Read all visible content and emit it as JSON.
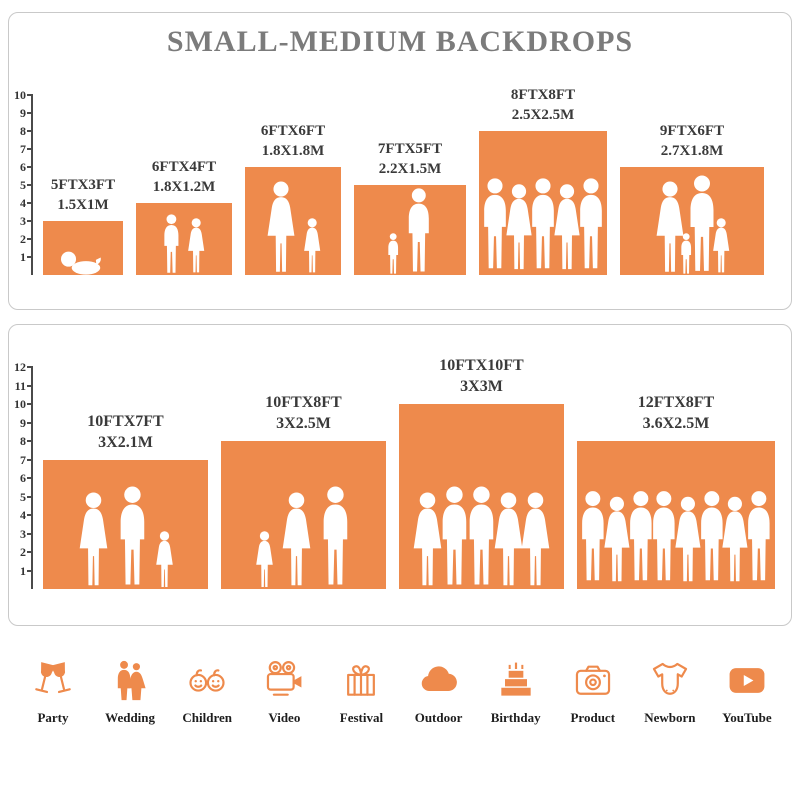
{
  "title": "SMALL-MEDIUM BACKDROPS",
  "colors": {
    "accent": "#EE8A4C",
    "title": "#7B7B7B",
    "text": "#3A3A3A",
    "ruler": "#444444",
    "border": "#C9C9C9"
  },
  "panels": [
    {
      "name": "small-medium-sizes",
      "ruler": [
        "10",
        "9",
        "8",
        "7",
        "6",
        "5",
        "4",
        "3",
        "2",
        "1"
      ],
      "backdrops": [
        {
          "ft": "5FTX3FT",
          "m": "1.5X1M",
          "w": 5,
          "h": 3,
          "people": [
            "baby"
          ]
        },
        {
          "ft": "6FTX4FT",
          "m": "1.8X1.2M",
          "w": 6,
          "h": 4,
          "people": [
            "child",
            "girl"
          ]
        },
        {
          "ft": "6FTX6FT",
          "m": "1.8X1.8M",
          "w": 6,
          "h": 6,
          "people": [
            "woman",
            "girl"
          ]
        },
        {
          "ft": "7FTX5FT",
          "m": "2.2X1.5M",
          "w": 7,
          "h": 5,
          "people": [
            "toddler",
            "adult"
          ]
        },
        {
          "ft": "8FTX8FT",
          "m": "2.5X2.5M",
          "w": 8,
          "h": 8,
          "people": [
            "adult",
            "woman",
            "adult",
            "woman",
            "adult"
          ]
        },
        {
          "ft": "9FTX6FT",
          "m": "2.7X1.8M",
          "w": 9,
          "h": 6,
          "people": [
            "woman",
            "toddler",
            "adult",
            "girl"
          ]
        }
      ]
    },
    {
      "name": "large-sizes",
      "ruler": [
        "12",
        "11",
        "10",
        "9",
        "8",
        "7",
        "6",
        "5",
        "4",
        "3",
        "2",
        "1"
      ],
      "backdrops": [
        {
          "ft": "10FTX7FT",
          "m": "3X2.1M",
          "w": 10,
          "h": 7,
          "people": [
            "woman",
            "adult",
            "girl"
          ]
        },
        {
          "ft": "10FTX8FT",
          "m": "3X2.5M",
          "w": 10,
          "h": 8,
          "people": [
            "girl",
            "woman",
            "adult"
          ]
        },
        {
          "ft": "10FTX10FT",
          "m": "3X3M",
          "w": 10,
          "h": 10,
          "people": [
            "woman",
            "adult",
            "adult",
            "woman",
            "woman"
          ]
        },
        {
          "ft": "12FTX8FT",
          "m": "3.6X2.5M",
          "w": 12,
          "h": 8,
          "people": [
            "adult",
            "woman",
            "adult",
            "adult",
            "woman",
            "adult",
            "woman",
            "adult"
          ]
        }
      ]
    }
  ],
  "categories": [
    {
      "label": "Party",
      "icon": "party-icon"
    },
    {
      "label": "Wedding",
      "icon": "wedding-icon"
    },
    {
      "label": "Children",
      "icon": "children-icon"
    },
    {
      "label": "Video",
      "icon": "video-icon"
    },
    {
      "label": "Festival",
      "icon": "festival-icon"
    },
    {
      "label": "Outdoor",
      "icon": "outdoor-icon"
    },
    {
      "label": "Birthday",
      "icon": "birthday-icon"
    },
    {
      "label": "Product",
      "icon": "product-icon"
    },
    {
      "label": "Newborn",
      "icon": "newborn-icon"
    },
    {
      "label": "YouTube",
      "icon": "youtube-icon"
    }
  ]
}
